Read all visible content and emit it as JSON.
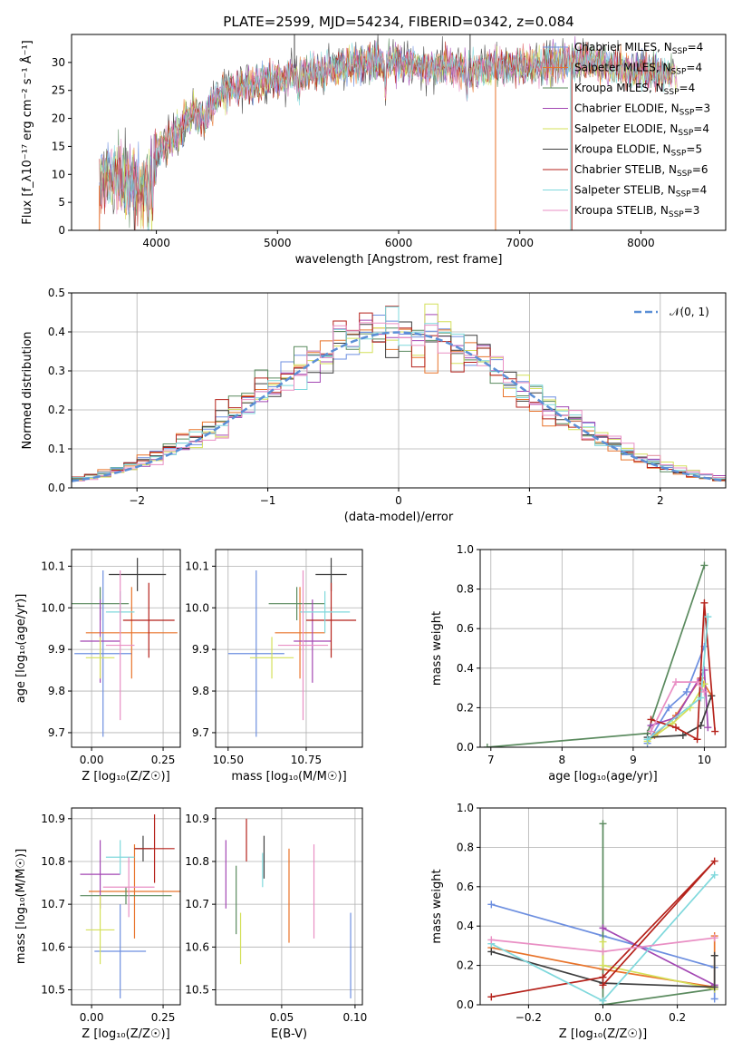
{
  "title": "PLATE=2599, MJD=54234, FIBERID=0342, z=0.084",
  "colors": [
    "#6d8fe0",
    "#e8732a",
    "#5a8a5e",
    "#a347b3",
    "#d4e05a",
    "#3f3f3f",
    "#b5221b",
    "#7fd8dc",
    "#e98fc4"
  ],
  "chart_data": [
    {
      "id": "spectrum",
      "type": "line",
      "xlabel": "wavelength [Angstrom, rest frame]",
      "ylabel": "Flux [f_λ10⁻¹⁷ erg cm⁻² s⁻¹ Å⁻¹]",
      "xlim": [
        3300,
        8700
      ],
      "ylim": [
        0,
        35
      ],
      "xticks": [
        4000,
        5000,
        6000,
        7000,
        8000
      ],
      "yticks": [
        0,
        5,
        10,
        15,
        20,
        25,
        30
      ],
      "legend_position": "right",
      "flux_envelope": {
        "x": [
          3530,
          3600,
          3700,
          3800,
          3900,
          3950,
          4000,
          4100,
          4200,
          4300,
          4400,
          4500,
          4600,
          4700,
          4800,
          4900,
          5000,
          5200,
          5400,
          5600,
          5800,
          6000,
          6200,
          6400,
          6600,
          6800,
          7000,
          7200,
          7400,
          7600,
          7800,
          8000,
          8200,
          8300
        ],
        "y": [
          8,
          10,
          9,
          9,
          7,
          10,
          14,
          16,
          18,
          21,
          20,
          24,
          25,
          26,
          26,
          27,
          27,
          28,
          29,
          29.5,
          30,
          30,
          29,
          29.5,
          28.5,
          29,
          29.5,
          29.5,
          30,
          30,
          29,
          28.5,
          28,
          28
        ]
      },
      "series": [
        {
          "name": "Chabrier MILES, N_SSP=4",
          "legend": "Chabrier MILES, N",
          "n": "=4"
        },
        {
          "name": "Salpeter MILES, N_SSP=4",
          "legend": "Salpeter MILES, N",
          "n": "=4"
        },
        {
          "name": "Kroupa MILES, N_SSP=4",
          "legend": "Kroupa MILES, N",
          "n": "=4"
        },
        {
          "name": "Chabrier ELODIE, N_SSP=3",
          "legend": "Chabrier ELODIE, N",
          "n": "=3"
        },
        {
          "name": "Salpeter ELODIE, N_SSP=4",
          "legend": "Salpeter ELODIE, N",
          "n": "=4"
        },
        {
          "name": "Kroupa ELODIE, N_SSP=5",
          "legend": "Kroupa ELODIE, N",
          "n": "=5"
        },
        {
          "name": "Chabrier STELIB, N_SSP=6",
          "legend": "Chabrier STELIB, N",
          "n": "=6"
        },
        {
          "name": "Salpeter STELIB, N_SSP=4",
          "legend": "Salpeter STELIB, N",
          "n": "=4"
        },
        {
          "name": "Kroupa STELIB, N_SSP=3",
          "legend": "Kroupa STELIB, N",
          "n": "=3"
        }
      ],
      "ssp_subscript": "SSP"
    },
    {
      "id": "residuals",
      "type": "histogram",
      "xlabel": "(data-model)/error",
      "ylabel": "Normed distribution",
      "xlim": [
        -2.5,
        2.5
      ],
      "ylim": [
        0,
        0.5
      ],
      "xticks": [
        -2,
        -1,
        0,
        1,
        2
      ],
      "yticks": [
        0.0,
        0.1,
        0.2,
        0.3,
        0.4,
        0.5
      ],
      "bin_width": 0.1,
      "gaussian_legend": "𝒩(0, 1)",
      "legend_position": "top-right"
    },
    {
      "id": "z-age",
      "type": "scatter",
      "xlabel": "Z [log₁₀(Z/Z☉)]",
      "ylabel": "age  [log₁₀(age/yr)]",
      "xlim": [
        -0.07,
        0.31
      ],
      "ylim": [
        9.665,
        10.14
      ],
      "xticks": [
        0.0,
        0.25
      ],
      "yticks": [
        9.7,
        9.8,
        9.9,
        10.0,
        10.1
      ],
      "points": [
        {
          "x": 0.04,
          "xerr": 0.1,
          "y": 9.89,
          "yerr": 0.2,
          "c": 0
        },
        {
          "x": 0.14,
          "xerr": 0.16,
          "y": 9.94,
          "yerr": 0.11,
          "c": 1
        },
        {
          "x": 0.03,
          "xerr": 0.1,
          "y": 10.01,
          "yerr": 0.04,
          "c": 2
        },
        {
          "x": 0.03,
          "xerr": 0.07,
          "y": 9.92,
          "yerr": 0.1,
          "c": 3
        },
        {
          "x": 0.03,
          "xerr": 0.05,
          "y": 9.88,
          "yerr": 0.05,
          "c": 4
        },
        {
          "x": 0.16,
          "xerr": 0.1,
          "y": 10.08,
          "yerr": 0.04,
          "c": 5
        },
        {
          "x": 0.2,
          "xerr": 0.09,
          "y": 9.97,
          "yerr": 0.09,
          "c": 6
        },
        {
          "x": 0.1,
          "xerr": 0.05,
          "y": 9.99,
          "yerr": 0.05,
          "c": 7
        },
        {
          "x": 0.1,
          "xerr": 0.05,
          "y": 9.91,
          "yerr": 0.18,
          "c": 8
        }
      ]
    },
    {
      "id": "mass-age",
      "type": "scatter",
      "xlabel": "mass [log₁₀(M/M☉)]",
      "ylabel": "",
      "xlim": [
        10.46,
        10.93
      ],
      "ylim": [
        9.665,
        10.14
      ],
      "xticks": [
        10.5,
        10.75
      ],
      "yticks": [
        9.7,
        9.8,
        9.9,
        10.0,
        10.1
      ],
      "points": [
        {
          "x": 10.59,
          "xerr": 0.09,
          "y": 9.89,
          "yerr": 0.2,
          "c": 0
        },
        {
          "x": 10.73,
          "xerr": 0.08,
          "y": 9.94,
          "yerr": 0.11,
          "c": 1
        },
        {
          "x": 10.72,
          "xerr": 0.09,
          "y": 10.01,
          "yerr": 0.04,
          "c": 2
        },
        {
          "x": 10.77,
          "xerr": 0.06,
          "y": 9.92,
          "yerr": 0.1,
          "c": 3
        },
        {
          "x": 10.64,
          "xerr": 0.07,
          "y": 9.88,
          "yerr": 0.05,
          "c": 4
        },
        {
          "x": 10.83,
          "xerr": 0.05,
          "y": 10.08,
          "yerr": 0.04,
          "c": 5
        },
        {
          "x": 10.83,
          "xerr": 0.08,
          "y": 9.97,
          "yerr": 0.09,
          "c": 6
        },
        {
          "x": 10.81,
          "xerr": 0.08,
          "y": 9.99,
          "yerr": 0.05,
          "c": 7
        },
        {
          "x": 10.74,
          "xerr": 0.08,
          "y": 9.91,
          "yerr": 0.18,
          "c": 8
        }
      ]
    },
    {
      "id": "age-weight",
      "type": "line",
      "xlabel": "age  [log₁₀(age/yr)]",
      "ylabel": "mass weight",
      "xlim": [
        6.85,
        10.3
      ],
      "ylim": [
        0,
        1.0
      ],
      "xticks": [
        7,
        8,
        9,
        10
      ],
      "yticks": [
        0.0,
        0.2,
        0.4,
        0.6,
        0.8,
        1.0
      ],
      "series": [
        {
          "c": 0,
          "points": [
            [
              9.2,
              0.02
            ],
            [
              9.5,
              0.2
            ],
            [
              9.75,
              0.28
            ],
            [
              10.0,
              0.51
            ]
          ]
        },
        {
          "c": 1,
          "points": [
            [
              9.3,
              0.06
            ],
            [
              9.6,
              0.16
            ],
            [
              9.95,
              0.35
            ],
            [
              10.1,
              0.26
            ]
          ]
        },
        {
          "c": 2,
          "points": [
            [
              6.95,
              0.0
            ],
            [
              9.2,
              0.07
            ],
            [
              10.0,
              0.92
            ]
          ]
        },
        {
          "c": 3,
          "points": [
            [
              9.25,
              0.11
            ],
            [
              9.6,
              0.15
            ],
            [
              10.0,
              0.39
            ],
            [
              10.05,
              0.1
            ]
          ]
        },
        {
          "c": 4,
          "points": [
            [
              9.2,
              0.03
            ],
            [
              9.55,
              0.12
            ],
            [
              9.8,
              0.2
            ],
            [
              10.0,
              0.32
            ]
          ]
        },
        {
          "c": 5,
          "points": [
            [
              9.2,
              0.05
            ],
            [
              9.7,
              0.06
            ],
            [
              9.95,
              0.11
            ],
            [
              10.1,
              0.26
            ]
          ]
        },
        {
          "c": 6,
          "points": [
            [
              9.25,
              0.14
            ],
            [
              9.6,
              0.1
            ],
            [
              9.9,
              0.04
            ],
            [
              10.0,
              0.73
            ],
            [
              10.15,
              0.08
            ]
          ]
        },
        {
          "c": 7,
          "points": [
            [
              9.2,
              0.04
            ],
            [
              9.95,
              0.25
            ],
            [
              10.05,
              0.66
            ]
          ]
        },
        {
          "c": 8,
          "points": [
            [
              9.25,
              0.08
            ],
            [
              9.6,
              0.33
            ],
            [
              9.9,
              0.33
            ],
            [
              10.0,
              0.28
            ]
          ]
        }
      ]
    },
    {
      "id": "z-mass",
      "type": "scatter",
      "xlabel": "Z [log₁₀(Z/Z☉)]",
      "ylabel": "mass [log₁₀(M/M☉)]",
      "xlim": [
        -0.07,
        0.31
      ],
      "ylim": [
        10.465,
        10.925
      ],
      "xticks": [
        0.0,
        0.25
      ],
      "yticks": [
        10.5,
        10.6,
        10.7,
        10.8,
        10.9
      ],
      "points": [
        {
          "x": 0.1,
          "xerr": 0.09,
          "y": 10.59,
          "yerr": 0.11,
          "c": 0
        },
        {
          "x": 0.15,
          "xerr": 0.16,
          "y": 10.73,
          "yerr": 0.11,
          "c": 1
        },
        {
          "x": 0.12,
          "xerr": 0.16,
          "y": 10.72,
          "yerr": 0.02,
          "c": 2
        },
        {
          "x": 0.03,
          "xerr": 0.07,
          "y": 10.77,
          "yerr": 0.08,
          "c": 3
        },
        {
          "x": 0.03,
          "xerr": 0.05,
          "y": 10.64,
          "yerr": 0.08,
          "c": 4
        },
        {
          "x": 0.18,
          "xerr": 0.03,
          "y": 10.83,
          "yerr": 0.03,
          "c": 5
        },
        {
          "x": 0.22,
          "xerr": 0.07,
          "y": 10.83,
          "yerr": 0.08,
          "c": 6
        },
        {
          "x": 0.1,
          "xerr": 0.05,
          "y": 10.81,
          "yerr": 0.04,
          "c": 7
        },
        {
          "x": 0.13,
          "xerr": 0.09,
          "y": 10.74,
          "yerr": 0.07,
          "c": 8
        }
      ]
    },
    {
      "id": "ebv-mass",
      "type": "scatter",
      "xlabel": "E(B-V)",
      "ylabel": "",
      "xlim": [
        0.005,
        0.105
      ],
      "ylim": [
        10.465,
        10.925
      ],
      "xticks": [
        0.05,
        0.1
      ],
      "yticks": [
        10.5,
        10.6,
        10.7,
        10.8,
        10.9
      ],
      "points": [
        {
          "x": 0.097,
          "y": 10.58,
          "yerr": 0.1,
          "c": 0
        },
        {
          "x": 0.055,
          "y": 10.72,
          "yerr": 0.11,
          "c": 1
        },
        {
          "x": 0.019,
          "y": 10.71,
          "yerr": 0.08,
          "c": 2
        },
        {
          "x": 0.012,
          "y": 10.77,
          "yerr": 0.08,
          "c": 3
        },
        {
          "x": 0.022,
          "y": 10.62,
          "yerr": 0.06,
          "c": 4
        },
        {
          "x": 0.038,
          "y": 10.81,
          "yerr": 0.05,
          "c": 5
        },
        {
          "x": 0.026,
          "y": 10.85,
          "yerr": 0.05,
          "c": 6
        },
        {
          "x": 0.037,
          "y": 10.78,
          "yerr": 0.04,
          "c": 7
        },
        {
          "x": 0.072,
          "y": 10.73,
          "yerr": 0.11,
          "c": 8
        }
      ]
    },
    {
      "id": "z-weight",
      "type": "line",
      "xlabel": "Z [log₁₀(Z/Z☉)]",
      "ylabel": "mass weight",
      "xlim": [
        -0.33,
        0.33
      ],
      "ylim": [
        0,
        1.0
      ],
      "xticks": [
        -0.2,
        0.0,
        0.2
      ],
      "yticks": [
        0.0,
        0.2,
        0.4,
        0.6,
        0.8,
        1.0
      ],
      "series": [
        {
          "c": 0,
          "points": [
            [
              -0.3,
              0.51
            ],
            [
              0.0,
              0.35
            ],
            [
              0.3,
              0.19
            ],
            [
              0.3,
              0.03
            ]
          ]
        },
        {
          "c": 1,
          "points": [
            [
              -0.3,
              0.29
            ],
            [
              0.0,
              0.18
            ],
            [
              0.3,
              0.09
            ],
            [
              0.3,
              0.35
            ]
          ]
        },
        {
          "c": 2,
          "points": [
            [
              0.0,
              0.0
            ],
            [
              0.0,
              0.92
            ],
            [
              0.0,
              0.0
            ],
            [
              0.3,
              0.08
            ]
          ]
        },
        {
          "c": 3,
          "points": [
            [
              0.0,
              0.39
            ],
            [
              0.3,
              0.1
            ]
          ]
        },
        {
          "c": 4,
          "points": [
            [
              0.0,
              0.32
            ],
            [
              0.0,
              0.2
            ],
            [
              0.3,
              0.08
            ]
          ]
        },
        {
          "c": 5,
          "points": [
            [
              -0.3,
              0.27
            ],
            [
              0.0,
              0.11
            ],
            [
              0.3,
              0.09
            ],
            [
              0.3,
              0.25
            ]
          ]
        },
        {
          "c": 6,
          "points": [
            [
              -0.3,
              0.04
            ],
            [
              0.0,
              0.14
            ],
            [
              0.3,
              0.73
            ],
            [
              0.0,
              0.1
            ]
          ]
        },
        {
          "c": 7,
          "points": [
            [
              -0.3,
              0.31
            ],
            [
              0.0,
              0.02
            ],
            [
              0.3,
              0.66
            ]
          ]
        },
        {
          "c": 8,
          "points": [
            [
              -0.3,
              0.33
            ],
            [
              0.0,
              0.27
            ],
            [
              0.3,
              0.34
            ]
          ]
        }
      ]
    }
  ]
}
